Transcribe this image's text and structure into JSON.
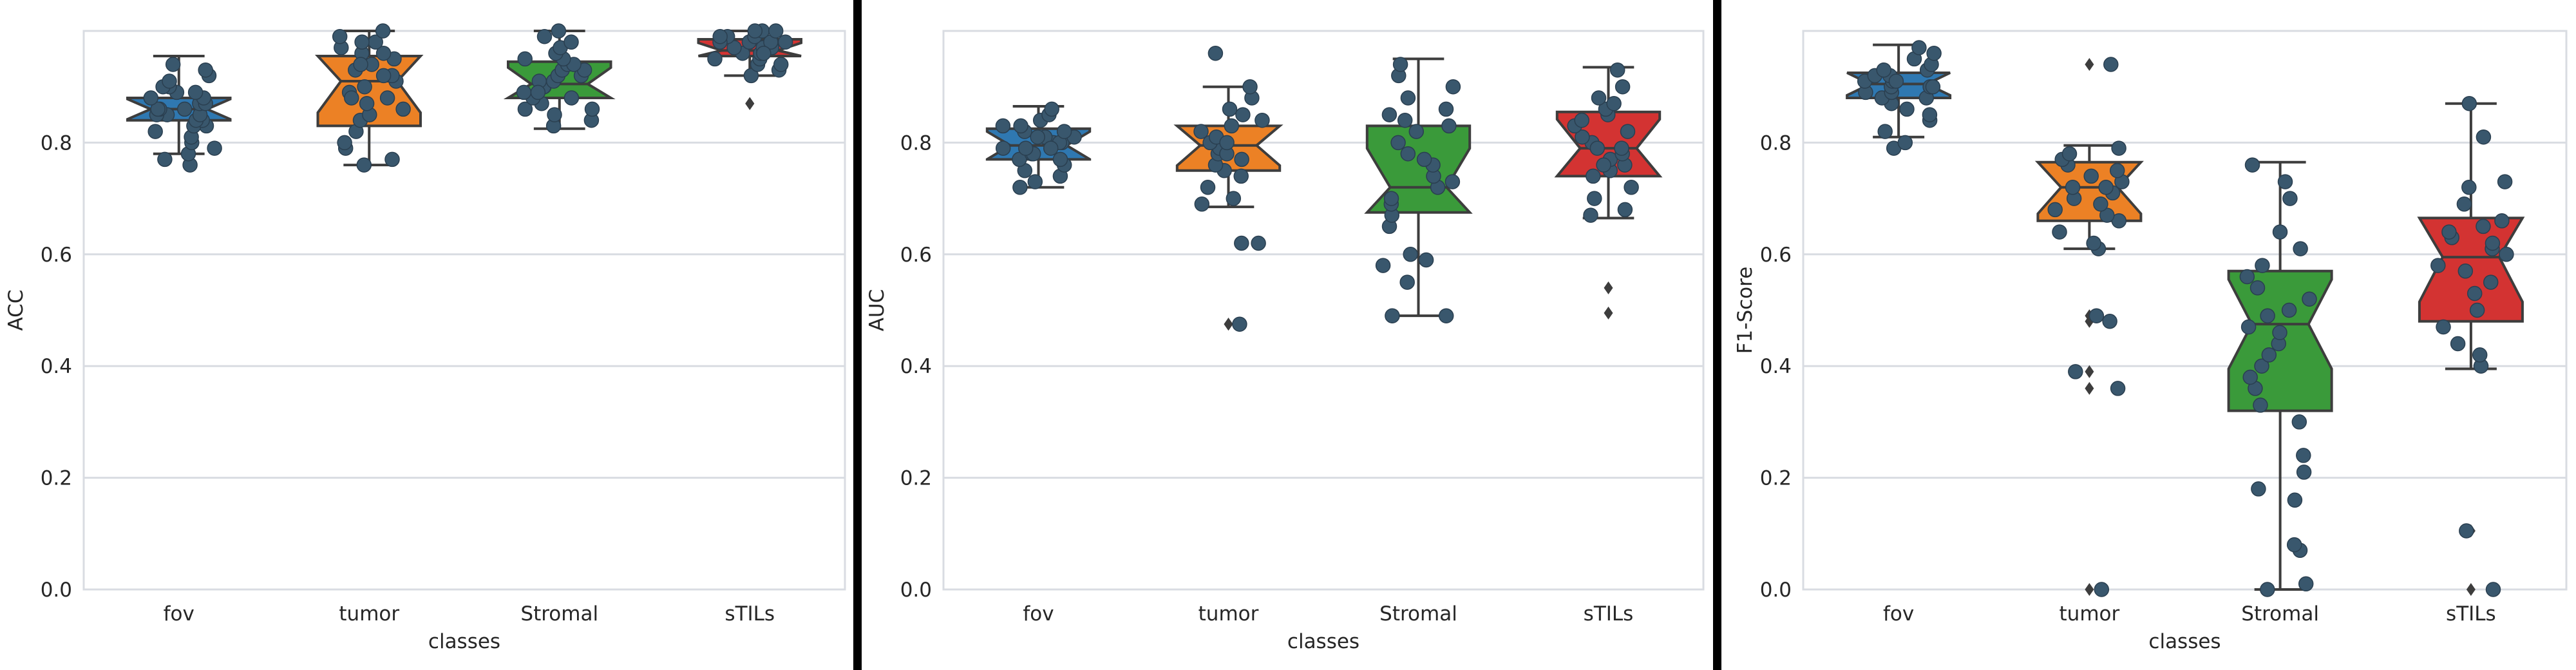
{
  "colors": {
    "fov": "#2f78b1",
    "tumor": "#ec8125",
    "Stromal": "#3a9a3a",
    "sTILs": "#d33332",
    "points": "#39576d",
    "grid": "#d9dce2",
    "separator": "#000000"
  },
  "chart_data": [
    {
      "type": "box",
      "xlabel": "classes",
      "ylabel": "ACC",
      "categories": [
        "fov",
        "tumor",
        "Stromal",
        "sTILs"
      ],
      "ylim": [
        0.0,
        1.0
      ],
      "yticks": [
        "0.0",
        "0.2",
        "0.4",
        "0.6",
        "0.8"
      ],
      "ytick_values": [
        0.0,
        0.2,
        0.4,
        0.6,
        0.8
      ],
      "grid": true,
      "notched": true,
      "boxes": [
        {
          "name": "fov",
          "whislo": 0.78,
          "q1": 0.84,
          "med": 0.86,
          "q3": 0.88,
          "whishi": 0.955,
          "fliers": [],
          "points": [
            0.76,
            0.77,
            0.78,
            0.79,
            0.8,
            0.81,
            0.82,
            0.83,
            0.83,
            0.84,
            0.84,
            0.85,
            0.85,
            0.85,
            0.86,
            0.86,
            0.86,
            0.87,
            0.87,
            0.88,
            0.88,
            0.89,
            0.89,
            0.9,
            0.9,
            0.91,
            0.92,
            0.93,
            0.94
          ]
        },
        {
          "name": "tumor",
          "whislo": 0.76,
          "q1": 0.83,
          "med": 0.91,
          "q3": 0.955,
          "whishi": 1.0,
          "fliers": [],
          "points": [
            0.76,
            0.77,
            0.79,
            0.8,
            0.82,
            0.84,
            0.85,
            0.86,
            0.87,
            0.88,
            0.89,
            0.9,
            0.91,
            0.92,
            0.93,
            0.94,
            0.95,
            0.96,
            0.97,
            0.98,
            0.99,
            1.0,
            0.96,
            0.92,
            0.88,
            0.94,
            0.98
          ]
        },
        {
          "name": "Stromal",
          "whislo": 0.825,
          "q1": 0.88,
          "med": 0.905,
          "q3": 0.945,
          "whishi": 1.0,
          "fliers": [],
          "points": [
            0.83,
            0.84,
            0.85,
            0.86,
            0.87,
            0.88,
            0.88,
            0.89,
            0.9,
            0.9,
            0.91,
            0.91,
            0.92,
            0.92,
            0.93,
            0.93,
            0.94,
            0.94,
            0.95,
            0.95,
            0.96,
            0.97,
            0.98,
            0.99,
            1.0,
            0.86,
            0.89
          ]
        },
        {
          "name": "sTILs",
          "whislo": 0.92,
          "q1": 0.955,
          "med": 0.965,
          "q3": 0.985,
          "whishi": 1.0,
          "fliers": [
            0.87,
            0.87
          ],
          "points": [
            0.92,
            0.93,
            0.94,
            0.95,
            0.95,
            0.96,
            0.96,
            0.97,
            0.97,
            0.97,
            0.98,
            0.98,
            0.98,
            0.99,
            0.99,
            1.0,
            1.0,
            1.0,
            0.96,
            0.98,
            0.94,
            0.99
          ]
        }
      ]
    },
    {
      "type": "box",
      "xlabel": "classes",
      "ylabel": "AUC",
      "categories": [
        "fov",
        "tumor",
        "Stromal",
        "sTILs"
      ],
      "ylim": [
        0.0,
        1.0
      ],
      "yticks": [
        "0.0",
        "0.2",
        "0.4",
        "0.6",
        "0.8"
      ],
      "ytick_values": [
        0.0,
        0.2,
        0.4,
        0.6,
        0.8
      ],
      "grid": true,
      "notched": true,
      "boxes": [
        {
          "name": "fov",
          "whislo": 0.72,
          "q1": 0.77,
          "med": 0.795,
          "q3": 0.825,
          "whishi": 0.865,
          "fliers": [],
          "points": [
            0.72,
            0.73,
            0.74,
            0.75,
            0.76,
            0.77,
            0.77,
            0.78,
            0.78,
            0.79,
            0.79,
            0.8,
            0.8,
            0.8,
            0.81,
            0.81,
            0.82,
            0.82,
            0.83,
            0.83,
            0.84,
            0.85,
            0.86,
            0.79,
            0.81
          ]
        },
        {
          "name": "tumor",
          "whislo": 0.685,
          "q1": 0.75,
          "med": 0.795,
          "q3": 0.83,
          "whishi": 0.9,
          "fliers": [
            0.475,
            0.475
          ],
          "points": [
            0.475,
            0.62,
            0.62,
            0.69,
            0.7,
            0.72,
            0.74,
            0.75,
            0.76,
            0.77,
            0.78,
            0.79,
            0.8,
            0.81,
            0.82,
            0.83,
            0.84,
            0.85,
            0.86,
            0.88,
            0.9,
            0.96,
            0.78,
            0.8
          ]
        },
        {
          "name": "Stromal",
          "whislo": 0.49,
          "q1": 0.675,
          "med": 0.72,
          "q3": 0.83,
          "whishi": 0.95,
          "fliers": [],
          "points": [
            0.49,
            0.49,
            0.55,
            0.58,
            0.59,
            0.6,
            0.65,
            0.67,
            0.69,
            0.7,
            0.72,
            0.74,
            0.76,
            0.78,
            0.8,
            0.82,
            0.83,
            0.84,
            0.85,
            0.86,
            0.88,
            0.9,
            0.92,
            0.94,
            0.77,
            0.73
          ]
        },
        {
          "name": "sTILs",
          "whislo": 0.665,
          "q1": 0.74,
          "med": 0.79,
          "q3": 0.855,
          "whishi": 0.935,
          "fliers": [
            0.54,
            0.495
          ],
          "points": [
            0.67,
            0.68,
            0.7,
            0.72,
            0.74,
            0.75,
            0.76,
            0.77,
            0.78,
            0.79,
            0.8,
            0.81,
            0.82,
            0.83,
            0.84,
            0.85,
            0.86,
            0.88,
            0.9,
            0.93,
            0.87,
            0.79,
            0.76
          ]
        }
      ]
    },
    {
      "type": "box",
      "xlabel": "classes",
      "ylabel": "F1-Score",
      "categories": [
        "fov",
        "tumor",
        "Stromal",
        "sTILs"
      ],
      "ylim": [
        0.0,
        1.0
      ],
      "yticks": [
        "0.0",
        "0.2",
        "0.4",
        "0.6",
        "0.8"
      ],
      "ytick_values": [
        0.0,
        0.2,
        0.4,
        0.6,
        0.8
      ],
      "grid": true,
      "notched": true,
      "boxes": [
        {
          "name": "fov",
          "whislo": 0.81,
          "q1": 0.88,
          "med": 0.905,
          "q3": 0.925,
          "whishi": 0.975,
          "fliers": [],
          "points": [
            0.79,
            0.8,
            0.82,
            0.84,
            0.85,
            0.86,
            0.87,
            0.88,
            0.88,
            0.89,
            0.89,
            0.9,
            0.9,
            0.9,
            0.91,
            0.91,
            0.92,
            0.92,
            0.93,
            0.93,
            0.94,
            0.95,
            0.96,
            0.97,
            0.91
          ]
        },
        {
          "name": "tumor",
          "whislo": 0.61,
          "q1": 0.66,
          "med": 0.72,
          "q3": 0.765,
          "whishi": 0.795,
          "fliers": [
            0.49,
            0.48,
            0.39,
            0.36,
            0.94,
            0.0
          ],
          "points": [
            0.0,
            0.36,
            0.39,
            0.48,
            0.49,
            0.61,
            0.62,
            0.64,
            0.66,
            0.67,
            0.68,
            0.69,
            0.7,
            0.71,
            0.72,
            0.73,
            0.74,
            0.75,
            0.76,
            0.77,
            0.78,
            0.79,
            0.94,
            0.72
          ]
        },
        {
          "name": "Stromal",
          "whislo": 0.0,
          "q1": 0.32,
          "med": 0.475,
          "q3": 0.57,
          "whishi": 0.765,
          "fliers": [],
          "points": [
            0.0,
            0.01,
            0.07,
            0.08,
            0.16,
            0.18,
            0.21,
            0.24,
            0.3,
            0.33,
            0.36,
            0.38,
            0.4,
            0.42,
            0.44,
            0.46,
            0.47,
            0.49,
            0.5,
            0.52,
            0.54,
            0.56,
            0.58,
            0.61,
            0.64,
            0.7,
            0.73,
            0.76
          ]
        },
        {
          "name": "sTILs",
          "whislo": 0.395,
          "q1": 0.48,
          "med": 0.595,
          "q3": 0.665,
          "whishi": 0.87,
          "fliers": [
            0.105,
            0.0
          ],
          "points": [
            0.0,
            0.105,
            0.4,
            0.42,
            0.44,
            0.47,
            0.5,
            0.53,
            0.55,
            0.57,
            0.58,
            0.6,
            0.61,
            0.62,
            0.63,
            0.64,
            0.65,
            0.66,
            0.69,
            0.72,
            0.73,
            0.81,
            0.87
          ]
        }
      ]
    }
  ]
}
